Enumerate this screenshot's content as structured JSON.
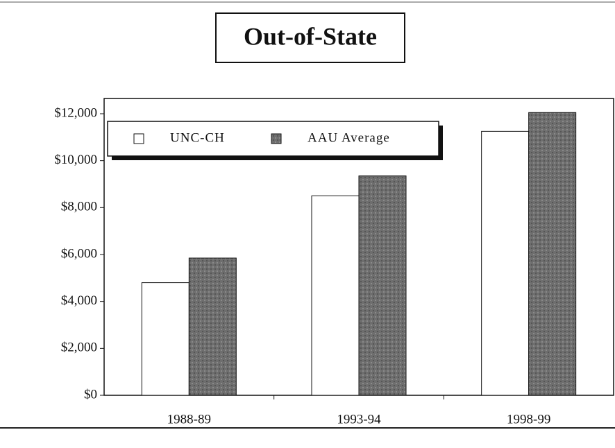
{
  "chart_data": {
    "type": "bar",
    "title": "Out-of-State",
    "categories": [
      "1988-89",
      "1993-94",
      "1998-99"
    ],
    "series": [
      {
        "name": "UNC-CH",
        "color": "#ffffff",
        "values": [
          4800,
          8500,
          11250
        ]
      },
      {
        "name": "AAU Average",
        "color": "#6e6e6e",
        "values": [
          5850,
          9350,
          12050
        ]
      }
    ],
    "ylim": [
      0,
      12650
    ],
    "yticks": [
      {
        "value": 0,
        "label": "$0"
      },
      {
        "value": 2000,
        "label": "$2,000"
      },
      {
        "value": 4000,
        "label": "$4,000"
      },
      {
        "value": 6000,
        "label": "$6,000"
      },
      {
        "value": 8000,
        "label": "$8,000"
      },
      {
        "value": 10000,
        "label": "$10,000"
      },
      {
        "value": 12000,
        "label": "$12,000"
      }
    ],
    "legend": "upper left"
  }
}
